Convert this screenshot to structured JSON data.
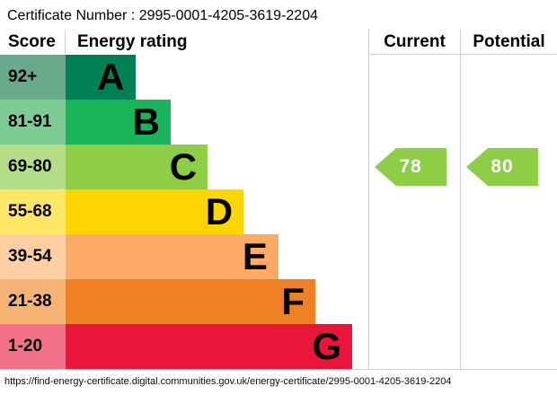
{
  "title": "Certificate Number : 2995-0001-4205-3619-2204",
  "header": {
    "score": "Score",
    "rating": "Energy rating",
    "current": "Current",
    "potential": "Potential"
  },
  "bands": [
    {
      "score": "92+",
      "letter": "A",
      "color": "#008054",
      "tint": "#6aaa8c",
      "width_pct": 23.0
    },
    {
      "score": "81-91",
      "letter": "B",
      "color": "#19b459",
      "tint": "#7fcb96",
      "width_pct": 34.7
    },
    {
      "score": "69-80",
      "letter": "C",
      "color": "#8dce46",
      "tint": "#b5de89",
      "width_pct": 46.9
    },
    {
      "score": "55-68",
      "letter": "D",
      "color": "#ffd500",
      "tint": "#ffe664",
      "width_pct": 58.8
    },
    {
      "score": "39-54",
      "letter": "E",
      "color": "#fcaa65",
      "tint": "#fdcfa2",
      "width_pct": 70.3
    },
    {
      "score": "21-38",
      "letter": "F",
      "color": "#ef8023",
      "tint": "#f4b273",
      "width_pct": 82.5
    },
    {
      "score": "1-20",
      "letter": "G",
      "color": "#e9153b",
      "tint": "#f17286",
      "width_pct": 94.7
    }
  ],
  "current": {
    "value": "78",
    "band": "C",
    "color": "#8dce46"
  },
  "potential": {
    "value": "80",
    "band": "C",
    "color": "#8dce46"
  },
  "footer_url": "https://find-energy-certificate.digital.communities.gov.uk/energy-certificate/2995-0001-4205-3619-2204",
  "border_color": "#cfcfcf",
  "chart_data": {
    "type": "bar",
    "orientation": "horizontal",
    "title": "Certificate Number : 2995-0001-4205-3619-2204",
    "categories": [
      "A",
      "B",
      "C",
      "D",
      "E",
      "F",
      "G"
    ],
    "score_ranges": [
      "92+",
      "81-91",
      "69-80",
      "55-68",
      "39-54",
      "21-38",
      "1-20"
    ],
    "bar_length_pct": [
      23.0,
      34.7,
      46.9,
      58.8,
      70.3,
      82.5,
      94.7
    ],
    "band_colors": [
      "#008054",
      "#19b459",
      "#8dce46",
      "#ffd500",
      "#fcaa65",
      "#ef8023",
      "#e9153b"
    ],
    "columns": [
      "Score",
      "Energy rating",
      "Current",
      "Potential"
    ],
    "current_rating": 78,
    "current_band": "C",
    "potential_rating": 80,
    "potential_band": "C",
    "legend_position": "none",
    "grid": false
  }
}
